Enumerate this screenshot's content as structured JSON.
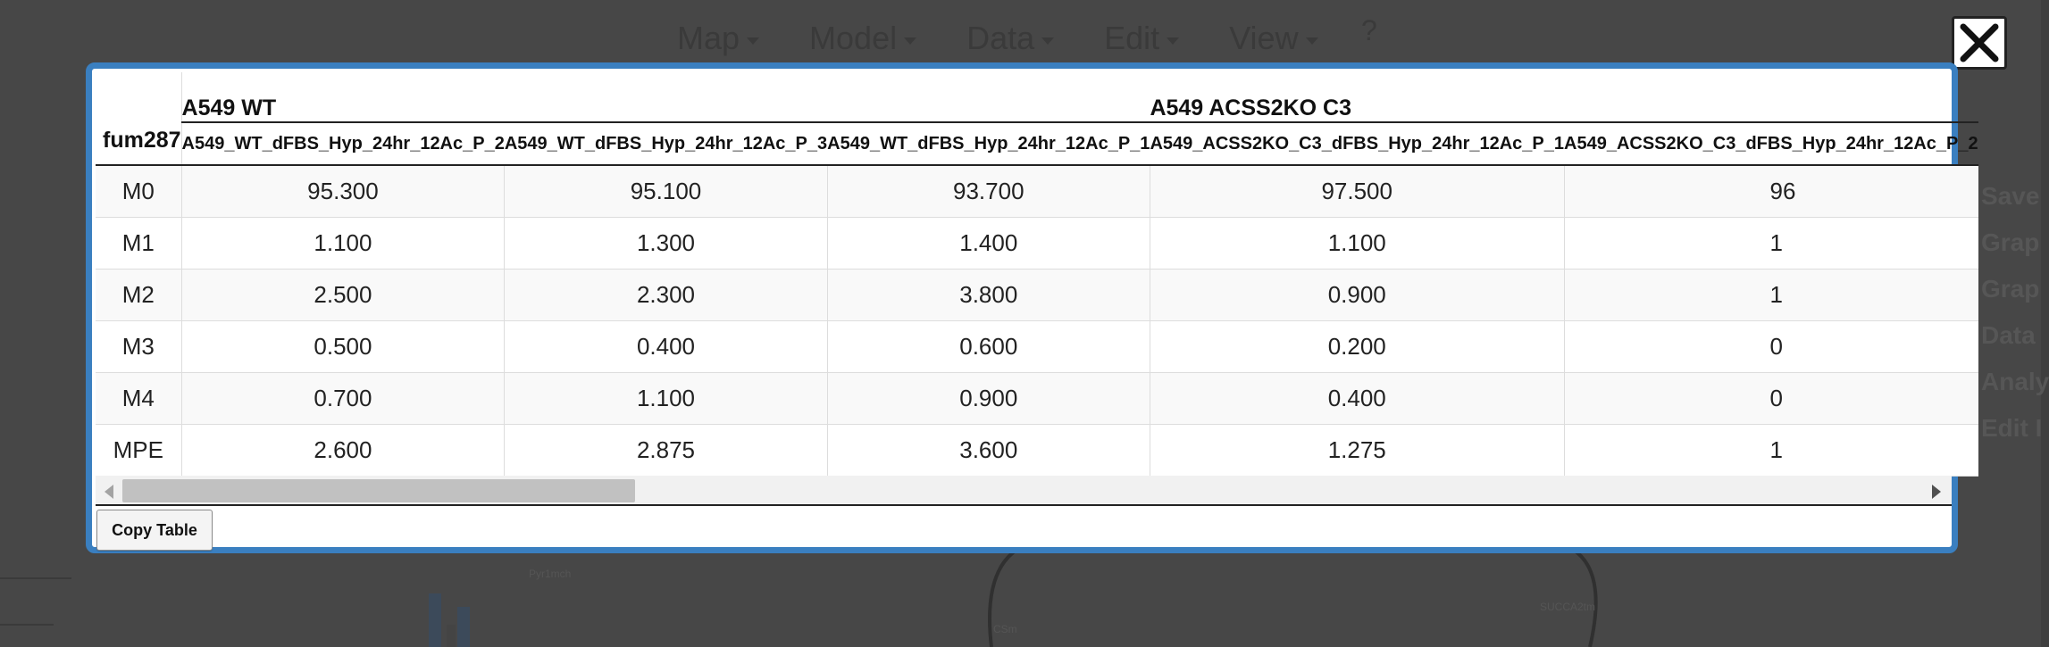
{
  "background_app": {
    "menu": [
      "Map",
      "Model",
      "Data",
      "Edit",
      "View"
    ],
    "help_label": "?",
    "side_items": [
      "Save",
      "Grap",
      "Grap",
      "Data",
      "Analy",
      "Edit I"
    ],
    "map_labels": [
      "SUCCA2tm",
      "CSm",
      "Pyr1mch"
    ]
  },
  "close_button": {
    "icon": "close-x-icon"
  },
  "table": {
    "metabolite": "fum287",
    "groups": [
      {
        "label": "A549 WT",
        "span": 3
      },
      {
        "label": "A549 ACSS2KO C3",
        "span": 2
      }
    ],
    "columns": [
      "A549_WT_dFBS_Hyp_24hr_12Ac_P_2",
      "A549_WT_dFBS_Hyp_24hr_12Ac_P_3",
      "A549_WT_dFBS_Hyp_24hr_12Ac_P_1",
      "A549_ACSS2KO_C3_dFBS_Hyp_24hr_12Ac_P_1",
      "A549_ACSS2KO_C3_dFBS_Hyp_24hr_12Ac_P_2"
    ],
    "rows": [
      {
        "label": "M0",
        "values": [
          "95.300",
          "95.100",
          "93.700",
          "97.500",
          "96"
        ]
      },
      {
        "label": "M1",
        "values": [
          "1.100",
          "1.300",
          "1.400",
          "1.100",
          "1"
        ]
      },
      {
        "label": "M2",
        "values": [
          "2.500",
          "2.300",
          "3.800",
          "0.900",
          "1"
        ]
      },
      {
        "label": "M3",
        "values": [
          "0.500",
          "0.400",
          "0.600",
          "0.200",
          "0"
        ]
      },
      {
        "label": "M4",
        "values": [
          "0.700",
          "1.100",
          "0.900",
          "0.400",
          "0"
        ]
      },
      {
        "label": "MPE",
        "values": [
          "2.600",
          "2.875",
          "3.600",
          "1.275",
          "1"
        ]
      }
    ]
  },
  "scrollbar": {
    "position_fraction": 0.0,
    "visible_fraction": 0.19
  },
  "copy_button_label": "Copy Table",
  "colors": {
    "modal_border": "#3a7fc0",
    "overlay": "#474747"
  }
}
